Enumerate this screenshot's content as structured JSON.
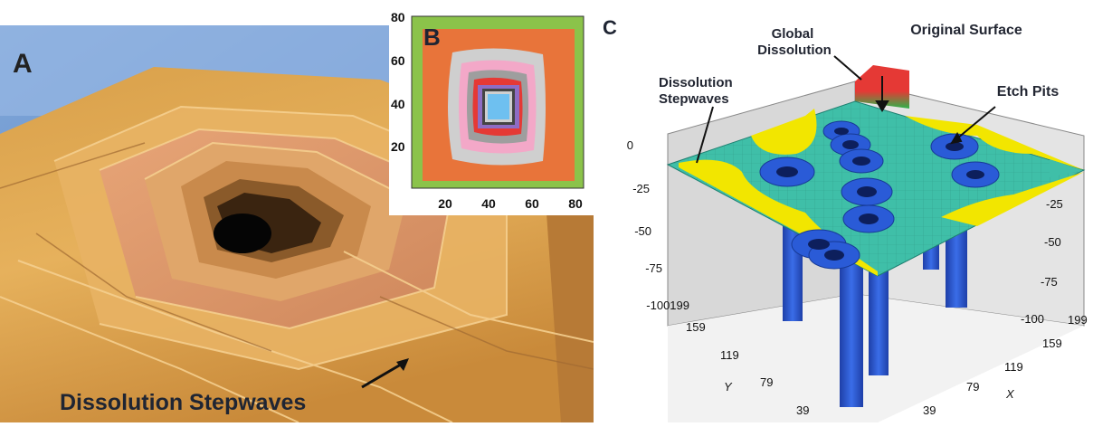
{
  "panel_a": {
    "letter": "A",
    "caption": "Dissolution Stepwaves"
  },
  "panel_b": {
    "letter": "B",
    "x_ticks": [
      "20",
      "40",
      "60",
      "80"
    ],
    "y_ticks": [
      "20",
      "40",
      "60",
      "80"
    ],
    "x_range": [
      0,
      80
    ],
    "y_range": [
      0,
      80
    ],
    "contour_colors": [
      "#8bc34a",
      "#e8743a",
      "#cfcfcf",
      "#f3a8c8",
      "#9e9e9e",
      "#e53935",
      "#8e6cc4",
      "#444444",
      "#cfcfcf",
      "#6ec0f0"
    ]
  },
  "panel_c": {
    "letter": "C",
    "labels": {
      "global_dissolution": [
        "Global",
        "Dissolution"
      ],
      "original_surface": "Original Surface",
      "dissolution_stepwaves": [
        "Dissolution",
        "Stepwaves"
      ],
      "etch_pits": "Etch Pits"
    },
    "z_ticks_left": [
      "0",
      "-25",
      "-50",
      "-75",
      "-100199"
    ],
    "z_ticks_right": [
      "-25",
      "-50",
      "-75",
      "-100"
    ],
    "y_ticks": [
      "159",
      "119",
      "79",
      "39"
    ],
    "x_ticks": [
      "199",
      "159",
      "119",
      "79",
      "39"
    ],
    "y_axis_label": "Y",
    "x_axis_label": "X",
    "colors": {
      "surface": "#3fbfa8",
      "dissolved": "#f2e600",
      "pit": "#2a5bd7",
      "wall": "#d6d6d6",
      "original_top": "#e53935"
    }
  }
}
